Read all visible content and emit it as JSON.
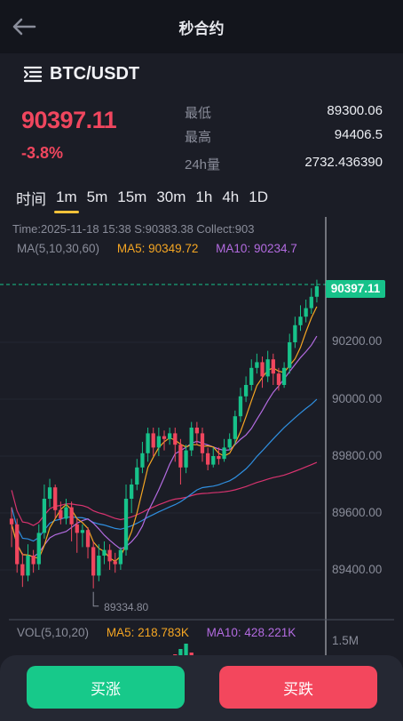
{
  "header": {
    "title": "秒合约"
  },
  "market": {
    "pair": "BTC/USDT",
    "price": "90397.11",
    "change": "-3.8%",
    "stats": {
      "low_label": "最低",
      "low_value": "89300.06",
      "high_label": "最高",
      "high_value": "94406.5",
      "vol_label": "24h量",
      "vol_value": "2732.436390"
    }
  },
  "timeframes": {
    "items": [
      "时间",
      "1m",
      "5m",
      "15m",
      "30m",
      "1h",
      "4h",
      "1D"
    ],
    "active": "1m"
  },
  "chart": {
    "info_line": "Time:2025-11-18 15:38    S:90383.38    Collect:903",
    "ma_prefix": "MA(5,10,30,60)",
    "ma5": "MA5: 90349.72",
    "ma10": "MA10: 90234.7",
    "current_price_tag": "90397.11",
    "low_marker": "89334.80",
    "y_labels": [
      "90200.00",
      "90000.00",
      "89800.00",
      "89600.00",
      "89400.00"
    ],
    "vol_prefix": "VOL(5,10,20)",
    "vol_ma5": "MA5: 218.783K",
    "vol_ma10": "MA10: 428.221K",
    "vol_axis": "1.5M",
    "colors": {
      "up": "#17c28a",
      "down": "#f0465e",
      "ma5": "#f5a623",
      "ma10": "#b36be0",
      "ma30": "#2f8fe0",
      "ma60": "#d8336f"
    }
  },
  "chart_data": {
    "type": "candlestick",
    "series": [
      {
        "name": "MA5"
      },
      {
        "name": "MA10"
      }
    ],
    "candles": [
      [
        89580,
        89560,
        89620,
        89480
      ],
      [
        89560,
        89420,
        89580,
        89390
      ],
      [
        89420,
        89380,
        89460,
        89340
      ],
      [
        89380,
        89450,
        89490,
        89360
      ],
      [
        89450,
        89420,
        89470,
        89390
      ],
      [
        89420,
        89530,
        89560,
        89400
      ],
      [
        89530,
        89650,
        89700,
        89510
      ],
      [
        89650,
        89690,
        89720,
        89620
      ],
      [
        89690,
        89610,
        89700,
        89580
      ],
      [
        89610,
        89580,
        89640,
        89560
      ],
      [
        89580,
        89620,
        89650,
        89560
      ],
      [
        89620,
        89560,
        89640,
        89500
      ],
      [
        89560,
        89530,
        89580,
        89460
      ],
      [
        89530,
        89540,
        89560,
        89480
      ],
      [
        89540,
        89480,
        89550,
        89440
      ],
      [
        89480,
        89380,
        89500,
        89335
      ],
      [
        89380,
        89450,
        89490,
        89360
      ],
      [
        89450,
        89470,
        89500,
        89420
      ],
      [
        89470,
        89430,
        89490,
        89400
      ],
      [
        89430,
        89420,
        89460,
        89390
      ],
      [
        89420,
        89470,
        89480,
        89400
      ],
      [
        89470,
        89650,
        89700,
        89450
      ],
      [
        89650,
        89700,
        89720,
        89600
      ],
      [
        89700,
        89760,
        89790,
        89680
      ],
      [
        89760,
        89810,
        89850,
        89740
      ],
      [
        89810,
        89880,
        89900,
        89780
      ],
      [
        89880,
        89830,
        89900,
        89800
      ],
      [
        89830,
        89870,
        89900,
        89800
      ],
      [
        89870,
        89860,
        89890,
        89820
      ],
      [
        89860,
        89880,
        89900,
        89840
      ],
      [
        89880,
        89840,
        89900,
        89780
      ],
      [
        89840,
        89760,
        89860,
        89700
      ],
      [
        89760,
        89820,
        89840,
        89740
      ],
      [
        89820,
        89900,
        89920,
        89800
      ],
      [
        89900,
        89880,
        89920,
        89840
      ],
      [
        89880,
        89810,
        89900,
        89780
      ],
      [
        89810,
        89770,
        89830,
        89750
      ],
      [
        89770,
        89800,
        89830,
        89760
      ],
      [
        89800,
        89790,
        89830,
        89770
      ],
      [
        89790,
        89830,
        89860,
        89780
      ],
      [
        89830,
        89860,
        89880,
        89820
      ],
      [
        89860,
        89940,
        89960,
        89840
      ],
      [
        89940,
        90010,
        90040,
        89920
      ],
      [
        90010,
        90050,
        90080,
        89990
      ],
      [
        90050,
        90110,
        90140,
        90030
      ],
      [
        90110,
        90130,
        90160,
        90090
      ],
      [
        90130,
        90080,
        90150,
        90040
      ],
      [
        90080,
        90140,
        90170,
        90060
      ],
      [
        90140,
        90090,
        90160,
        90050
      ],
      [
        90090,
        90050,
        90110,
        90030
      ],
      [
        90050,
        90110,
        90130,
        90040
      ],
      [
        90110,
        90200,
        90230,
        90090
      ],
      [
        90200,
        90260,
        90290,
        90180
      ],
      [
        90260,
        90290,
        90330,
        90240
      ],
      [
        90290,
        90320,
        90350,
        90270
      ],
      [
        90320,
        90360,
        90390,
        90300
      ],
      [
        90360,
        90397,
        90420,
        90340
      ]
    ]
  },
  "actions": {
    "buy_label": "买涨",
    "sell_label": "买跌"
  }
}
